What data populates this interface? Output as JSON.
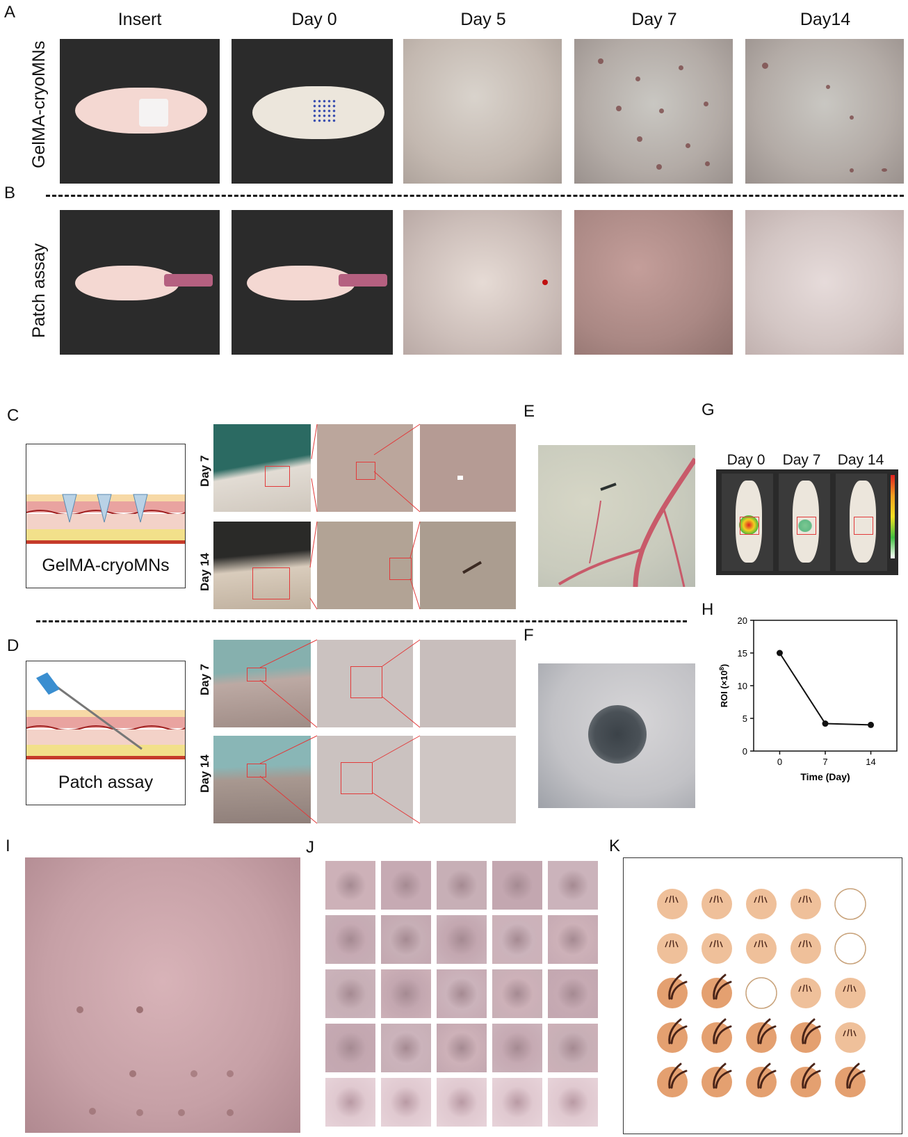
{
  "panels": {
    "A": "A",
    "B": "B",
    "C": "C",
    "D": "D",
    "E": "E",
    "F": "F",
    "G": "G",
    "H": "H",
    "I": "I",
    "J": "J",
    "K": "K"
  },
  "columns": [
    "Insert",
    "Day 0",
    "Day 5",
    "Day 7",
    "Day14"
  ],
  "rows": {
    "A_label": "GelMA-cryoMNs",
    "B_label": "Patch assay"
  },
  "schematic": {
    "C_caption": "GelMA-cryoMNs",
    "D_caption": "Patch assay"
  },
  "zoom_rows": {
    "day7": "Day 7",
    "day14": "Day 14"
  },
  "imaging": {
    "labels": [
      "Day 0",
      "Day 7",
      "Day 14"
    ]
  },
  "chart_data": {
    "type": "line",
    "x": [
      0,
      7,
      14
    ],
    "y": [
      15,
      4.2,
      4.0
    ],
    "xticks": [
      "0",
      "7",
      "14"
    ],
    "yticks": [
      "0",
      "5",
      "10",
      "15",
      "20"
    ],
    "xlabel": "Time (Day)",
    "ylabel": "ROI (×10",
    "ylabel_sup": "8",
    "ylabel_end": ")",
    "ylim": [
      0,
      20
    ],
    "xlim": [
      -4,
      18
    ]
  },
  "grid_K": {
    "rows": [
      [
        "hair-small",
        "hair-small",
        "hair-small",
        "hair-small",
        "empty"
      ],
      [
        "hair-small",
        "hair-small",
        "hair-small",
        "hair-small",
        "empty"
      ],
      [
        "hair-large",
        "hair-large",
        "empty",
        "hair-small",
        "hair-small"
      ],
      [
        "hair-large",
        "hair-large",
        "hair-large",
        "hair-large",
        "hair-small"
      ],
      [
        "hair-large",
        "hair-large",
        "hair-large",
        "hair-large",
        "hair-large"
      ]
    ]
  },
  "colors": {
    "zoom_box": "#e23a3a",
    "skin_follicle": "#e8b48e",
    "hair": "#4a2418"
  }
}
